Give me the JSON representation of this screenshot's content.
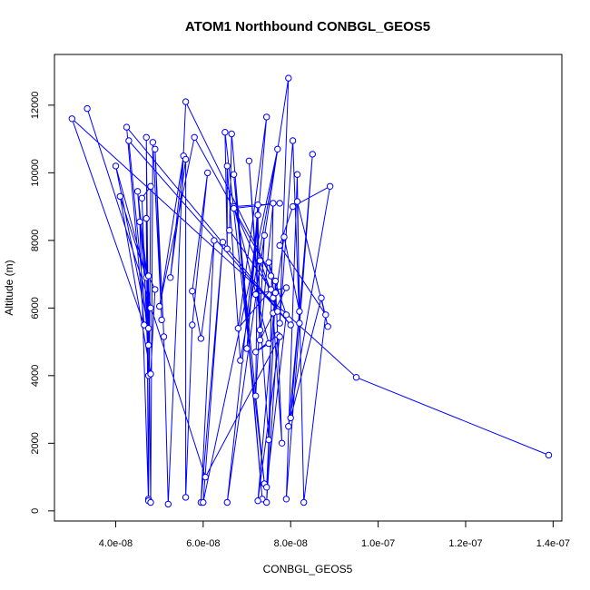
{
  "chart_data": {
    "type": "line",
    "title": "ATOM1 Northbound CONBGL_GEOS5",
    "xlabel": "CONBGL_GEOS5",
    "ylabel": "Altitude (m)",
    "xlim": [
      2.6e-08,
      1.42e-07
    ],
    "ylim": [
      -300,
      13500
    ],
    "x_ticks": [
      4e-08,
      6e-08,
      8e-08,
      1e-07,
      1.2e-07,
      1.4e-07
    ],
    "x_tick_labels": [
      "4.0e-08",
      "6.0e-08",
      "8.0e-08",
      "1.0e-07",
      "1.2e-07",
      "1.4e-07"
    ],
    "y_ticks": [
      0,
      2000,
      4000,
      6000,
      8000,
      10000,
      12000
    ],
    "y_tick_labels": [
      "0",
      "2000",
      "4000",
      "6000",
      "8000",
      "10000",
      "12000"
    ],
    "grid": false,
    "legend": "none",
    "series": [
      {
        "marker": "open-circle",
        "color": "#0000ff",
        "points": [
          [
            1.39e-07,
            1650
          ],
          [
            9.5e-08,
            3950
          ],
          [
            3e-08,
            11600
          ],
          [
            4.65e-08,
            5500
          ],
          [
            4.25e-08,
            11350
          ],
          [
            8e-08,
            5500
          ],
          [
            4.3e-08,
            10950
          ],
          [
            4.75e-08,
            4900
          ],
          [
            4.7e-08,
            11050
          ],
          [
            4.75e-08,
            350
          ],
          [
            4.8e-08,
            9600
          ],
          [
            4.6e-08,
            9250
          ],
          [
            4.75e-08,
            4000
          ],
          [
            4.7e-08,
            8650
          ],
          [
            4.75e-08,
            300
          ],
          [
            4.55e-08,
            8550
          ],
          [
            4.8e-08,
            6000
          ],
          [
            4.5e-08,
            9450
          ],
          [
            4.75e-08,
            5400
          ],
          [
            4e-08,
            10200
          ],
          [
            4.7e-08,
            6900
          ],
          [
            4.1e-08,
            9300
          ],
          [
            4.8e-08,
            4050
          ],
          [
            4.9e-08,
            6550
          ],
          [
            4.75e-08,
            6950
          ],
          [
            4.8e-08,
            250
          ],
          [
            4.85e-08,
            10900
          ],
          [
            5.05e-08,
            5650
          ],
          [
            4.9e-08,
            10700
          ],
          [
            5.1e-08,
            5150
          ],
          [
            5.2e-08,
            200
          ],
          [
            5.6e-08,
            12100
          ],
          [
            7.55e-08,
            6950
          ],
          [
            5.8e-08,
            11050
          ],
          [
            5e-08,
            6050
          ],
          [
            5.55e-08,
            10500
          ],
          [
            5.25e-08,
            6900
          ],
          [
            5.6e-08,
            10400
          ],
          [
            5.6e-08,
            400
          ],
          [
            5.75e-08,
            5500
          ],
          [
            6.1e-08,
            10000
          ],
          [
            5.75e-08,
            6500
          ],
          [
            5.95e-08,
            5100
          ],
          [
            6.25e-08,
            8000
          ],
          [
            5.95e-08,
            250
          ],
          [
            6.45e-08,
            7950
          ],
          [
            6e-08,
            250
          ],
          [
            7.7e-08,
            10700
          ],
          [
            6.85e-08,
            4450
          ],
          [
            6.55e-08,
            10200
          ],
          [
            6.55e-08,
            7750
          ],
          [
            6.5e-08,
            11200
          ],
          [
            7.4e-08,
            800
          ],
          [
            6.7e-08,
            9950
          ],
          [
            7.35e-08,
            350
          ],
          [
            6.65e-08,
            11150
          ],
          [
            6.6e-08,
            8300
          ],
          [
            7.55e-08,
            6550
          ],
          [
            6.8e-08,
            5400
          ],
          [
            7.45e-08,
            11650
          ],
          [
            7e-08,
            4800
          ],
          [
            7.25e-08,
            9050
          ],
          [
            7.2e-08,
            3400
          ],
          [
            7.4e-08,
            8150
          ],
          [
            6.55e-08,
            250
          ],
          [
            7.25e-08,
            8750
          ],
          [
            7.3e-08,
            5350
          ],
          [
            7.05e-08,
            10350
          ],
          [
            7.5e-08,
            2100
          ],
          [
            7.6e-08,
            9100
          ],
          [
            7.3e-08,
            5050
          ],
          [
            7.9e-08,
            6600
          ],
          [
            7.2e-08,
            6400
          ],
          [
            7.95e-08,
            12800
          ],
          [
            7.75e-08,
            5550
          ],
          [
            8.05e-08,
            10950
          ],
          [
            8.2e-08,
            5550
          ],
          [
            8.15e-08,
            9950
          ],
          [
            7.9e-08,
            350
          ],
          [
            8.5e-08,
            10550
          ],
          [
            8e-08,
            2750
          ],
          [
            8.7e-08,
            6300
          ],
          [
            8.85e-08,
            5450
          ],
          [
            8.15e-08,
            9150
          ],
          [
            8.3e-08,
            250
          ],
          [
            8.8e-08,
            5800
          ],
          [
            7.75e-08,
            7850
          ],
          [
            8.05e-08,
            9000
          ],
          [
            8.9e-08,
            9600
          ],
          [
            7.95e-08,
            2500
          ],
          [
            8.2e-08,
            5900
          ],
          [
            7.85e-08,
            8100
          ],
          [
            7.6e-08,
            5850
          ],
          [
            7.8e-08,
            2000
          ],
          [
            7.65e-08,
            6800
          ],
          [
            7.45e-08,
            250
          ],
          [
            7.7e-08,
            5200
          ],
          [
            7.2e-08,
            4700
          ],
          [
            7.5e-08,
            4950
          ],
          [
            6.7e-08,
            9000
          ],
          [
            7.75e-08,
            9100
          ],
          [
            6.7e-08,
            8950
          ],
          [
            7.6e-08,
            6300
          ],
          [
            7.3e-08,
            7400
          ],
          [
            7.7e-08,
            5900
          ],
          [
            7.5e-08,
            7350
          ],
          [
            7.9e-08,
            5800
          ],
          [
            7.45e-08,
            700
          ],
          [
            7.65e-08,
            6450
          ],
          [
            7.25e-08,
            300
          ],
          [
            7.75e-08,
            5150
          ],
          [
            6.05e-08,
            1000
          ],
          [
            3.35e-08,
            11900
          ]
        ]
      }
    ]
  }
}
